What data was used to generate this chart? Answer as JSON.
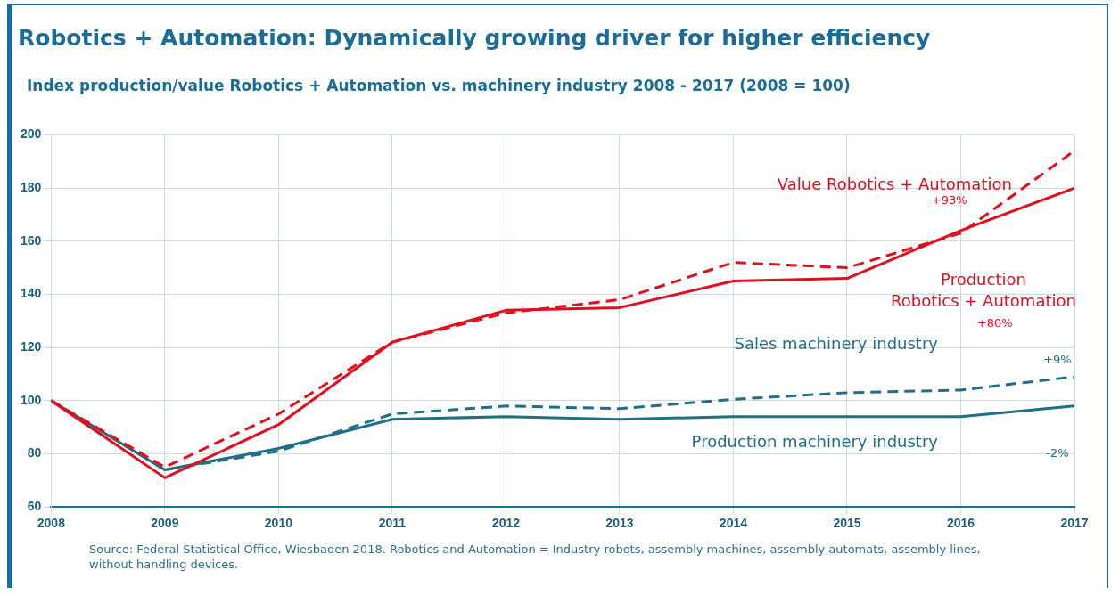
{
  "chart_data": {
    "type": "line",
    "title": "Robotics + Automation: Dynamically growing driver for higher efficiency",
    "subtitle": "Index production/value Robotics + Automation vs. machinery industry 2008 - 2017 (2008 = 100)",
    "x": [
      2008,
      2009,
      2010,
      2011,
      2012,
      2013,
      2014,
      2015,
      2016,
      2017
    ],
    "series": [
      {
        "name": "Value Robotics + Automation",
        "color": "#e0101e",
        "line_style": "dashed",
        "values": [
          100,
          75,
          95,
          122,
          133,
          138,
          152,
          150,
          163,
          194
        ]
      },
      {
        "name": "Production Robotics + Automation",
        "color": "#e0101e",
        "line_style": "solid",
        "values": [
          100,
          71,
          91,
          122,
          134,
          135,
          145,
          146,
          164,
          180
        ]
      },
      {
        "name": "Sales machinery industry",
        "color": "#1f6f86",
        "line_style": "dashed",
        "values": [
          100,
          74,
          81,
          95,
          98,
          97,
          100.5,
          103,
          104,
          109
        ]
      },
      {
        "name": "Production machinery industry",
        "color": "#1f6f86",
        "line_style": "solid",
        "values": [
          100,
          74,
          82,
          93,
          94,
          93,
          94,
          94,
          94,
          98
        ]
      }
    ],
    "annotations": [
      "+93%",
      "+80%",
      "+9%",
      "-2%",
      "Source: Federal Statistical Office, Wiesbaden 2018. Robotics and Automation = Industry robots, assembly machines, assembly automats, assembly lines, without handling devices."
    ],
    "xlim": [
      2008,
      2017
    ],
    "xticks": [
      2008,
      2009,
      2010,
      2011,
      2012,
      2013,
      2014,
      2015,
      2016,
      2017
    ],
    "ylim": [
      60,
      200
    ],
    "yticks": [
      60,
      80,
      100,
      120,
      140,
      160,
      180,
      200
    ],
    "grid": true,
    "legend": false,
    "marker": "none"
  }
}
